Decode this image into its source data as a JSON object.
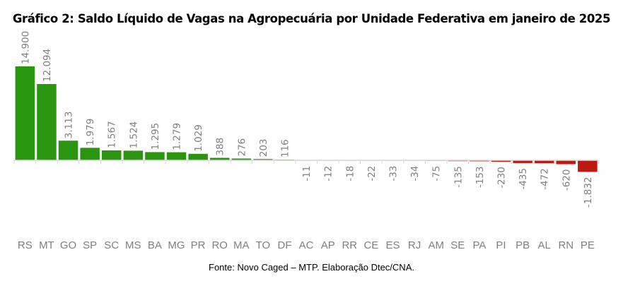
{
  "chart_data": {
    "type": "bar",
    "title": "Gráfico 2: Saldo Líquido de Vagas na Agropecuária por Unidade Federativa em janeiro de 2025",
    "source": "Fonte: Novo Caged – MTP. Elaboração Dtec/CNA.",
    "xlabel": "",
    "ylabel": "",
    "categories": [
      "RS",
      "MT",
      "GO",
      "SP",
      "SC",
      "MS",
      "BA",
      "MG",
      "PR",
      "RO",
      "MA",
      "TO",
      "DF",
      "AC",
      "AP",
      "RR",
      "CE",
      "ES",
      "RJ",
      "AM",
      "SE",
      "PA",
      "PI",
      "PB",
      "AL",
      "RN",
      "PE"
    ],
    "values": [
      14900,
      12094,
      3113,
      1979,
      1567,
      1524,
      1295,
      1279,
      1029,
      388,
      276,
      203,
      116,
      -11,
      -12,
      -18,
      -22,
      -33,
      -34,
      -75,
      -135,
      -153,
      -230,
      -435,
      -472,
      -620,
      -1832
    ],
    "value_labels": [
      "14.900",
      "12.094",
      "3.113",
      "1.979",
      "1.567",
      "1.524",
      "1.295",
      "1.279",
      "1.029",
      "388",
      "276",
      "203",
      "116",
      "-11",
      "-12",
      "-18",
      "-22",
      "-33",
      "-34",
      "-75",
      "-135",
      "-153",
      "-230",
      "-435",
      "-472",
      "-620",
      "-1.832"
    ],
    "ylim": [
      -1832,
      14900
    ],
    "grid": false,
    "legend": "none",
    "colors": {
      "positive": "#2a9610",
      "negative": "#bb1a14",
      "axis": "#d9d9d9",
      "label": "#7f7f7f"
    }
  }
}
